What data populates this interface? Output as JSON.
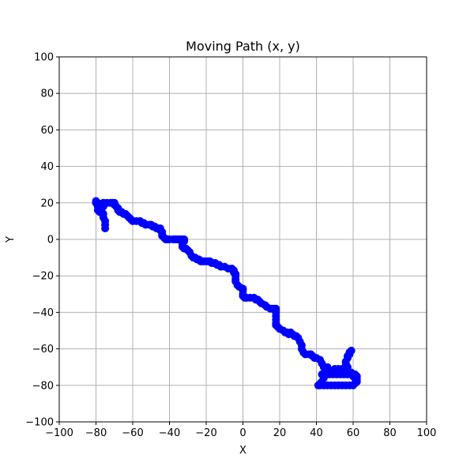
{
  "chart_data": {
    "type": "scatter",
    "title": "Moving Path (x, y)",
    "xlabel": "X",
    "ylabel": "Y",
    "xlim": [
      -100,
      100
    ],
    "ylim": [
      -100,
      100
    ],
    "xticks": [
      -100,
      -80,
      -60,
      -40,
      -20,
      0,
      20,
      40,
      60,
      80,
      100
    ],
    "yticks": [
      -100,
      -80,
      -60,
      -40,
      -20,
      0,
      20,
      40,
      60,
      80,
      100
    ],
    "xtick_labels": [
      "−100",
      "−80",
      "−60",
      "−40",
      "−20",
      "0",
      "20",
      "40",
      "60",
      "80",
      "100"
    ],
    "ytick_labels": [
      "−100",
      "−80",
      "−60",
      "−40",
      "−20",
      "0",
      "20",
      "40",
      "60",
      "80",
      "100"
    ],
    "grid": true,
    "series": [
      {
        "color": "#0000ff",
        "marker": "circle",
        "line": true,
        "points": [
          [
            -75,
            6
          ],
          [
            -75,
            8
          ],
          [
            -75,
            10
          ],
          [
            -76,
            12
          ],
          [
            -76,
            14
          ],
          [
            -78,
            15
          ],
          [
            -79,
            16
          ],
          [
            -79,
            18
          ],
          [
            -80,
            20
          ],
          [
            -80,
            21
          ],
          [
            -79,
            20
          ],
          [
            -78,
            19
          ],
          [
            -77,
            17
          ],
          [
            -76,
            18
          ],
          [
            -76,
            20
          ],
          [
            -74,
            20
          ],
          [
            -72,
            20
          ],
          [
            -71,
            20
          ],
          [
            -70,
            20
          ],
          [
            -70,
            19
          ],
          [
            -69,
            18
          ],
          [
            -68,
            17
          ],
          [
            -68,
            16
          ],
          [
            -67,
            15
          ],
          [
            -66,
            15
          ],
          [
            -65,
            14
          ],
          [
            -64,
            14
          ],
          [
            -63,
            13
          ],
          [
            -62,
            12
          ],
          [
            -61,
            11
          ],
          [
            -60,
            10
          ],
          [
            -58,
            10
          ],
          [
            -56,
            10
          ],
          [
            -55,
            9
          ],
          [
            -54,
            9
          ],
          [
            -53,
            8
          ],
          [
            -51,
            8
          ],
          [
            -50,
            8
          ],
          [
            -49,
            7
          ],
          [
            -48,
            7
          ],
          [
            -47,
            6
          ],
          [
            -46,
            6
          ],
          [
            -45,
            6
          ],
          [
            -45,
            5
          ],
          [
            -44,
            4
          ],
          [
            -44,
            3
          ],
          [
            -44,
            2
          ],
          [
            -43,
            1
          ],
          [
            -42,
            0
          ],
          [
            -41,
            0
          ],
          [
            -40,
            0
          ],
          [
            -38,
            0
          ],
          [
            -37,
            0
          ],
          [
            -36,
            0
          ],
          [
            -35,
            0
          ],
          [
            -34,
            0
          ],
          [
            -33,
            0
          ],
          [
            -32,
            0
          ],
          [
            -32,
            -1
          ],
          [
            -33,
            -2
          ],
          [
            -33,
            -4
          ],
          [
            -32,
            -5
          ],
          [
            -31,
            -5
          ],
          [
            -30,
            -6
          ],
          [
            -29,
            -7
          ],
          [
            -28,
            -9
          ],
          [
            -27,
            -10
          ],
          [
            -26,
            -10
          ],
          [
            -25,
            -11
          ],
          [
            -24,
            -11
          ],
          [
            -23,
            -12
          ],
          [
            -22,
            -12
          ],
          [
            -21,
            -12
          ],
          [
            -20,
            -12
          ],
          [
            -19,
            -12
          ],
          [
            -18,
            -12
          ],
          [
            -17,
            -13
          ],
          [
            -16,
            -13
          ],
          [
            -15,
            -13
          ],
          [
            -14,
            -14
          ],
          [
            -13,
            -14
          ],
          [
            -12,
            -15
          ],
          [
            -10,
            -15
          ],
          [
            -8,
            -16
          ],
          [
            -6,
            -16
          ],
          [
            -5,
            -17
          ],
          [
            -5,
            -18
          ],
          [
            -4,
            -19
          ],
          [
            -4,
            -20
          ],
          [
            -4,
            -22
          ],
          [
            -4,
            -23
          ],
          [
            -3,
            -25
          ],
          [
            -2,
            -26
          ],
          [
            0,
            -27
          ],
          [
            0,
            -28
          ],
          [
            0,
            -30
          ],
          [
            0,
            -31
          ],
          [
            1,
            -32
          ],
          [
            2,
            -32
          ],
          [
            4,
            -32
          ],
          [
            6,
            -32
          ],
          [
            7,
            -33
          ],
          [
            8,
            -33
          ],
          [
            9,
            -34
          ],
          [
            10,
            -35
          ],
          [
            12,
            -36
          ],
          [
            13,
            -37
          ],
          [
            15,
            -38
          ],
          [
            16,
            -38
          ],
          [
            17,
            -38
          ],
          [
            18,
            -38
          ],
          [
            18,
            -39
          ],
          [
            18,
            -40
          ],
          [
            18,
            -42
          ],
          [
            18,
            -44
          ],
          [
            18,
            -46
          ],
          [
            18,
            -47
          ],
          [
            19,
            -48
          ],
          [
            20,
            -49
          ],
          [
            22,
            -50
          ],
          [
            23,
            -51
          ],
          [
            24,
            -51
          ],
          [
            25,
            -52
          ],
          [
            26,
            -51
          ],
          [
            27,
            -52
          ],
          [
            28,
            -53
          ],
          [
            29,
            -53
          ],
          [
            30,
            -54
          ],
          [
            31,
            -56
          ],
          [
            32,
            -58
          ],
          [
            32,
            -60
          ],
          [
            33,
            -62
          ],
          [
            34,
            -63
          ],
          [
            36,
            -63
          ],
          [
            37,
            -63
          ],
          [
            38,
            -64
          ],
          [
            39,
            -65
          ],
          [
            40,
            -65
          ],
          [
            42,
            -66
          ],
          [
            43,
            -68
          ],
          [
            44,
            -70
          ],
          [
            45,
            -71
          ],
          [
            46,
            -70
          ],
          [
            48,
            -72
          ],
          [
            49,
            -72
          ],
          [
            50,
            -71
          ],
          [
            52,
            -71
          ],
          [
            53,
            -72
          ],
          [
            54,
            -71
          ],
          [
            55,
            -71
          ],
          [
            56,
            -70
          ],
          [
            56,
            -67
          ],
          [
            57,
            -65
          ],
          [
            58,
            -63
          ],
          [
            59,
            -61
          ],
          [
            58,
            -62
          ],
          [
            57,
            -64
          ],
          [
            56,
            -68
          ],
          [
            57,
            -70
          ],
          [
            57,
            -72
          ],
          [
            59,
            -73
          ],
          [
            60,
            -74
          ],
          [
            61,
            -74
          ],
          [
            62,
            -75
          ],
          [
            62,
            -77
          ],
          [
            62,
            -78
          ],
          [
            61,
            -79
          ],
          [
            60,
            -80
          ],
          [
            58,
            -80
          ],
          [
            56,
            -80
          ],
          [
            54,
            -80
          ],
          [
            52,
            -80
          ],
          [
            50,
            -80
          ],
          [
            48,
            -80
          ],
          [
            46,
            -80
          ],
          [
            44,
            -80
          ],
          [
            42,
            -80
          ],
          [
            41,
            -80
          ],
          [
            42,
            -79
          ],
          [
            43,
            -78
          ],
          [
            44,
            -76
          ],
          [
            44,
            -75
          ],
          [
            43,
            -74
          ],
          [
            45,
            -74
          ],
          [
            47,
            -74
          ],
          [
            49,
            -74
          ],
          [
            51,
            -74
          ],
          [
            53,
            -74
          ],
          [
            55,
            -74
          ],
          [
            57,
            -74
          ],
          [
            59,
            -74
          ],
          [
            60,
            -75
          ],
          [
            61,
            -76
          ],
          [
            62,
            -76
          ]
        ]
      }
    ]
  }
}
